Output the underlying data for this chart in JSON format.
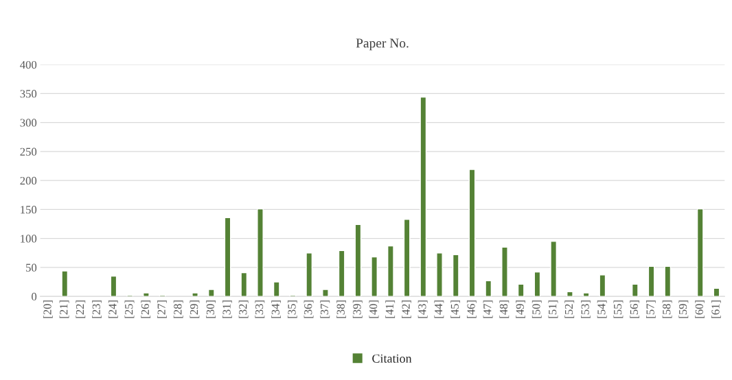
{
  "chart_data": {
    "type": "bar",
    "title": "Paper No.",
    "categories": [
      "[20]",
      "[21]",
      "[22]",
      "[23]",
      "[24]",
      "[25]",
      "[26]",
      "[27]",
      "[28]",
      "[29]",
      "[30]",
      "[31]",
      "[32]",
      "[33]",
      "[34]",
      "[35]",
      "[36]",
      "[37]",
      "[38]",
      "[39]",
      "[40]",
      "[41]",
      "[42]",
      "[43]",
      "[44]",
      "[45]",
      "[46]",
      "[47]",
      "[48]",
      "[49]",
      "[50]",
      "[51]",
      "[52]",
      "[53]",
      "[54]",
      "[55]",
      "[56]",
      "[57]",
      "[58]",
      "[59]",
      "[60]",
      "[61]"
    ],
    "series": [
      {
        "name": "Citation",
        "color": "#548235",
        "values": [
          null,
          44,
          null,
          null,
          35,
          2,
          6,
          2,
          null,
          6,
          12,
          136,
          41,
          151,
          25,
          2,
          75,
          12,
          79,
          124,
          68,
          87,
          133,
          344,
          75,
          72,
          219,
          27,
          85,
          21,
          42,
          95,
          8,
          6,
          37,
          null,
          21,
          52,
          52,
          null,
          151,
          14
        ]
      }
    ],
    "ylim": [
      0,
      400
    ],
    "yticks": [
      0,
      50,
      100,
      150,
      200,
      250,
      300,
      350,
      400
    ],
    "grid": "y",
    "legend": "bottom"
  }
}
